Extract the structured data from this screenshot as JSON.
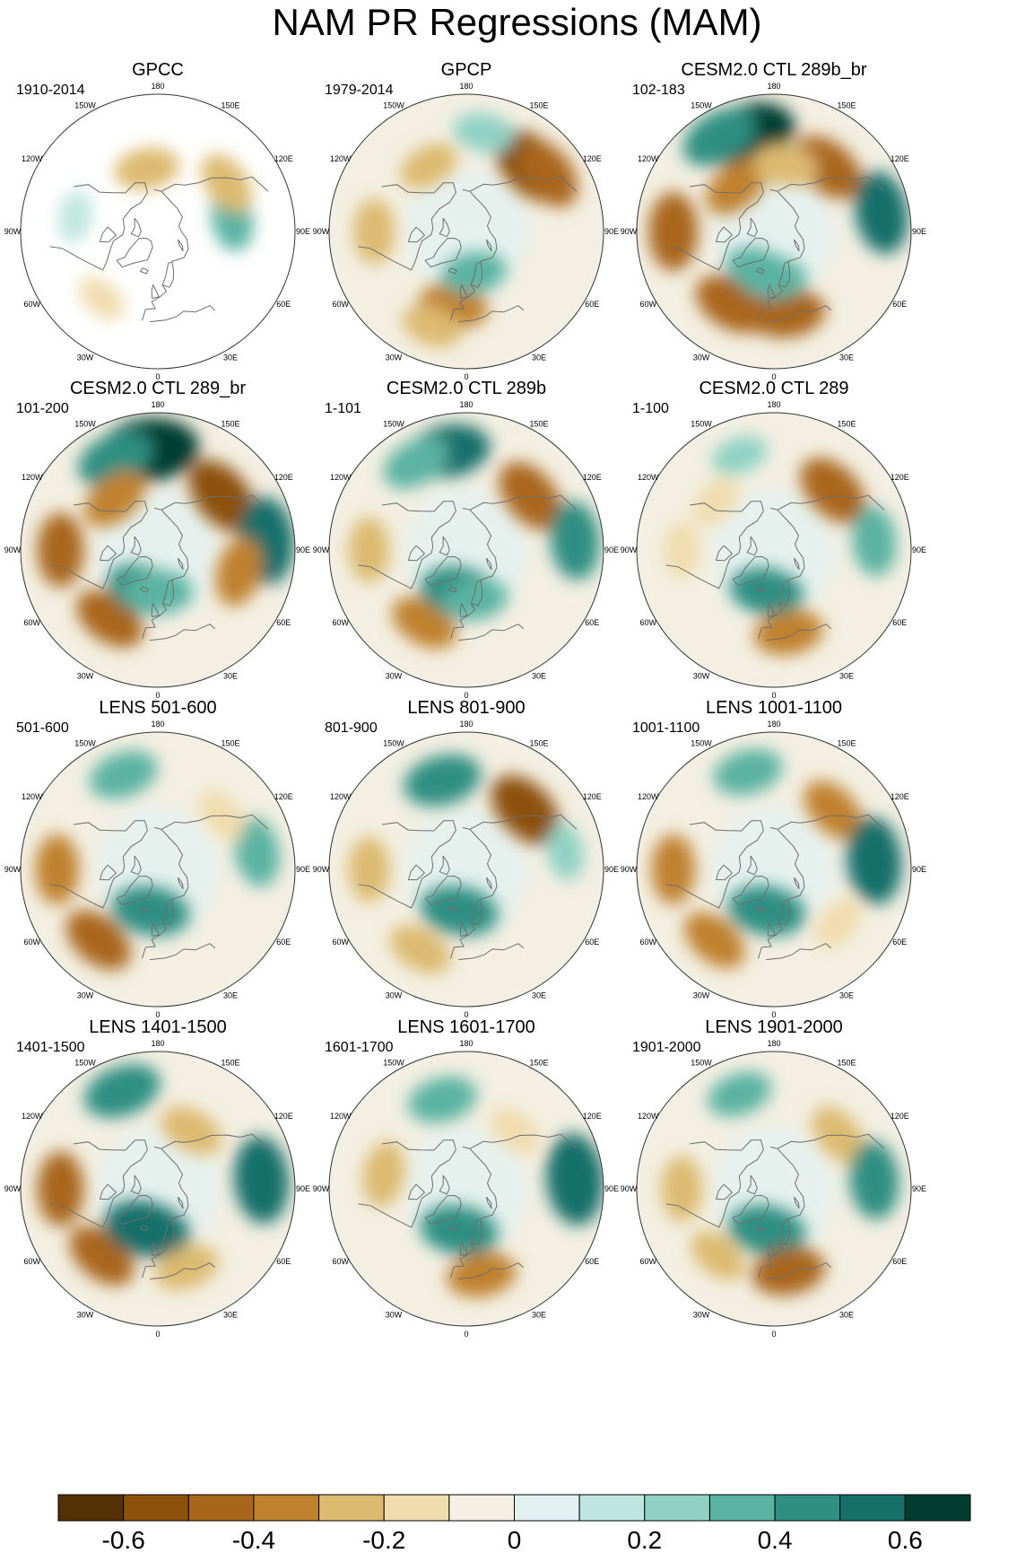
{
  "title": "NAM PR Regressions (MAM)",
  "colors": {
    "colorbar": [
      "#543005",
      "#8c510a",
      "#a9661b",
      "#bf812d",
      "#dcba6f",
      "#f0dcad",
      "#f5f0e3",
      "#e0f1ef",
      "#bfe6de",
      "#8fd2c3",
      "#5ab2a2",
      "#2f8f82",
      "#16706a",
      "#003c30"
    ],
    "land_outline": "#6e6e6e",
    "circle_outline": "#333333"
  },
  "lon_labels": [
    "180",
    "150E",
    "120E",
    "90E",
    "60E",
    "30E",
    "0",
    "30W",
    "60W",
    "90W",
    "120W",
    "150W"
  ],
  "panels": [
    {
      "name": "GPCC",
      "period": "1910-2014",
      "masked": true
    },
    {
      "name": "GPCP",
      "period": "1979-2014"
    },
    {
      "name": "CESM2.0 CTL 289b_br",
      "period": "102-183"
    },
    {
      "name": "CESM2.0 CTL 289_br",
      "period": "101-200"
    },
    {
      "name": "CESM2.0 CTL 289b",
      "period": "1-101"
    },
    {
      "name": "CESM2.0 CTL 289",
      "period": "1-100"
    },
    {
      "name": "LENS 501-600",
      "period": "501-600"
    },
    {
      "name": "LENS 801-900",
      "period": "801-900"
    },
    {
      "name": "LENS 1001-1100",
      "period": "1001-1100"
    },
    {
      "name": "LENS 1401-1500",
      "period": "1401-1500"
    },
    {
      "name": "LENS 1601-1700",
      "period": "1601-1700"
    },
    {
      "name": "LENS 1901-2000",
      "period": "1901-2000"
    }
  ],
  "chart_data": {
    "type": "heatmap",
    "projection": "north-polar-stereographic",
    "title": "NAM PR Regressions (MAM)",
    "colorbar": {
      "min": -0.7,
      "max": 0.7,
      "interval": 0.1,
      "tick_values": [
        -0.6,
        -0.4,
        -0.2,
        0,
        0.2,
        0.4,
        0.6
      ],
      "tick_labels": [
        "-0.6",
        "-0.4",
        "-0.2",
        "0",
        "0.2",
        "0.4",
        "0.6"
      ]
    },
    "fields": [
      {
        "panel": "GPCC",
        "period": "1910-2014",
        "blobs": [
          {
            "lon": -170,
            "lat": 52,
            "v": -0.3
          },
          {
            "lon": 100,
            "lat": 45,
            "v": 0.3
          },
          {
            "lon": 125,
            "lat": 40,
            "v": -0.3
          },
          {
            "lon": -40,
            "lat": 38,
            "v": -0.15
          },
          {
            "lon": -100,
            "lat": 40,
            "v": 0.15
          }
        ]
      },
      {
        "panel": "GPCP",
        "period": "1979-2014",
        "blobs": [
          {
            "lon": 135,
            "lat": 35,
            "v": -0.55
          },
          {
            "lon": 125,
            "lat": 30,
            "v": -0.4
          },
          {
            "lon": -150,
            "lat": 45,
            "v": -0.25
          },
          {
            "lon": -10,
            "lat": 45,
            "v": -0.35
          },
          {
            "lon": -20,
            "lat": 30,
            "v": -0.25
          },
          {
            "lon": 170,
            "lat": 30,
            "v": 0.25
          },
          {
            "lon": 10,
            "lat": 65,
            "v": 0.3
          },
          {
            "lon": -90,
            "lat": 35,
            "v": -0.3
          }
        ]
      },
      {
        "panel": "CESM2.0 CTL 289b_br",
        "period": "102-183",
        "blobs": [
          {
            "lon": -165,
            "lat": 30,
            "v": 0.65
          },
          {
            "lon": -150,
            "lat": 25,
            "v": 0.45
          },
          {
            "lon": 140,
            "lat": 40,
            "v": -0.45
          },
          {
            "lon": -140,
            "lat": 55,
            "v": -0.35
          },
          {
            "lon": 170,
            "lat": 50,
            "v": -0.3
          },
          {
            "lon": 100,
            "lat": 25,
            "v": 0.5
          },
          {
            "lon": -90,
            "lat": 30,
            "v": -0.45
          },
          {
            "lon": -30,
            "lat": 40,
            "v": -0.45
          },
          {
            "lon": 10,
            "lat": 40,
            "v": -0.4
          },
          {
            "lon": -20,
            "lat": 65,
            "v": 0.35
          },
          {
            "lon": 0,
            "lat": 62,
            "v": 0.3
          }
        ]
      },
      {
        "panel": "CESM2.0 CTL 289_br",
        "period": "101-200",
        "blobs": [
          {
            "lon": -175,
            "lat": 30,
            "v": 0.7
          },
          {
            "lon": -155,
            "lat": 30,
            "v": 0.45
          },
          {
            "lon": 130,
            "lat": 40,
            "v": -0.5
          },
          {
            "lon": 95,
            "lat": 25,
            "v": 0.55
          },
          {
            "lon": -140,
            "lat": 50,
            "v": -0.35
          },
          {
            "lon": -90,
            "lat": 32,
            "v": -0.4
          },
          {
            "lon": -35,
            "lat": 40,
            "v": -0.4
          },
          {
            "lon": -20,
            "lat": 65,
            "v": 0.4
          },
          {
            "lon": 0,
            "lat": 65,
            "v": 0.35
          },
          {
            "lon": 75,
            "lat": 40,
            "v": -0.35
          }
        ]
      },
      {
        "panel": "CESM2.0 CTL 289b",
        "period": "1-101",
        "blobs": [
          {
            "lon": -170,
            "lat": 30,
            "v": 0.5
          },
          {
            "lon": -150,
            "lat": 30,
            "v": 0.35
          },
          {
            "lon": 130,
            "lat": 40,
            "v": -0.45
          },
          {
            "lon": 95,
            "lat": 25,
            "v": 0.45
          },
          {
            "lon": -90,
            "lat": 32,
            "v": -0.3
          },
          {
            "lon": -30,
            "lat": 40,
            "v": -0.35
          },
          {
            "lon": -10,
            "lat": 65,
            "v": 0.45
          },
          {
            "lon": 10,
            "lat": 60,
            "v": 0.3
          }
        ]
      },
      {
        "panel": "CESM2.0 CTL 289",
        "period": "1-100",
        "blobs": [
          {
            "lon": 135,
            "lat": 40,
            "v": -0.45
          },
          {
            "lon": 95,
            "lat": 30,
            "v": 0.35
          },
          {
            "lon": -130,
            "lat": 45,
            "v": -0.2
          },
          {
            "lon": -160,
            "lat": 30,
            "v": 0.2
          },
          {
            "lon": -10,
            "lat": 65,
            "v": 0.4
          },
          {
            "lon": 10,
            "lat": 40,
            "v": -0.35
          },
          {
            "lon": -90,
            "lat": 35,
            "v": -0.2
          }
        ]
      },
      {
        "panel": "LENS 501-600",
        "period": "501-600",
        "blobs": [
          {
            "lon": -160,
            "lat": 30,
            "v": 0.35
          },
          {
            "lon": 100,
            "lat": 30,
            "v": 0.35
          },
          {
            "lon": -90,
            "lat": 30,
            "v": -0.35
          },
          {
            "lon": -40,
            "lat": 35,
            "v": -0.4
          },
          {
            "lon": -10,
            "lat": 65,
            "v": 0.45
          },
          {
            "lon": 130,
            "lat": 40,
            "v": -0.2
          }
        ]
      },
      {
        "panel": "LENS 801-900",
        "period": "801-900",
        "blobs": [
          {
            "lon": -165,
            "lat": 35,
            "v": 0.45
          },
          {
            "lon": 135,
            "lat": 40,
            "v": -0.5
          },
          {
            "lon": 100,
            "lat": 30,
            "v": 0.2
          },
          {
            "lon": -90,
            "lat": 32,
            "v": -0.3
          },
          {
            "lon": -10,
            "lat": 65,
            "v": 0.45
          },
          {
            "lon": -30,
            "lat": 35,
            "v": -0.3
          }
        ]
      },
      {
        "panel": "LENS 1001-1100",
        "period": "1001-1100",
        "blobs": [
          {
            "lon": -165,
            "lat": 30,
            "v": 0.35
          },
          {
            "lon": 135,
            "lat": 40,
            "v": -0.35
          },
          {
            "lon": 95,
            "lat": 30,
            "v": 0.55
          },
          {
            "lon": -90,
            "lat": 30,
            "v": -0.35
          },
          {
            "lon": -40,
            "lat": 35,
            "v": -0.35
          },
          {
            "lon": -10,
            "lat": 65,
            "v": 0.45
          },
          {
            "lon": 50,
            "lat": 40,
            "v": -0.2
          }
        ]
      },
      {
        "panel": "LENS 1401-1500",
        "period": "1401-1500",
        "blobs": [
          {
            "lon": -160,
            "lat": 28,
            "v": 0.45
          },
          {
            "lon": 150,
            "lat": 50,
            "v": -0.3
          },
          {
            "lon": 95,
            "lat": 28,
            "v": 0.55
          },
          {
            "lon": -90,
            "lat": 32,
            "v": -0.4
          },
          {
            "lon": -40,
            "lat": 38,
            "v": -0.4
          },
          {
            "lon": -15,
            "lat": 65,
            "v": 0.55
          },
          {
            "lon": 20,
            "lat": 40,
            "v": -0.3
          }
        ]
      },
      {
        "panel": "LENS 1601-1700",
        "period": "1601-1700",
        "blobs": [
          {
            "lon": -165,
            "lat": 35,
            "v": 0.35
          },
          {
            "lon": 95,
            "lat": 25,
            "v": 0.6
          },
          {
            "lon": -100,
            "lat": 40,
            "v": -0.3
          },
          {
            "lon": -10,
            "lat": 65,
            "v": 0.45
          },
          {
            "lon": 10,
            "lat": 38,
            "v": -0.35
          },
          {
            "lon": 140,
            "lat": 45,
            "v": -0.2
          }
        ]
      },
      {
        "panel": "LENS 1901-2000",
        "period": "1901-2000",
        "blobs": [
          {
            "lon": -160,
            "lat": 30,
            "v": 0.3
          },
          {
            "lon": 130,
            "lat": 40,
            "v": -0.3
          },
          {
            "lon": 95,
            "lat": 30,
            "v": 0.45
          },
          {
            "lon": -90,
            "lat": 35,
            "v": -0.3
          },
          {
            "lon": -10,
            "lat": 65,
            "v": 0.45
          },
          {
            "lon": 10,
            "lat": 40,
            "v": -0.4
          },
          {
            "lon": -40,
            "lat": 38,
            "v": -0.25
          }
        ]
      }
    ]
  }
}
